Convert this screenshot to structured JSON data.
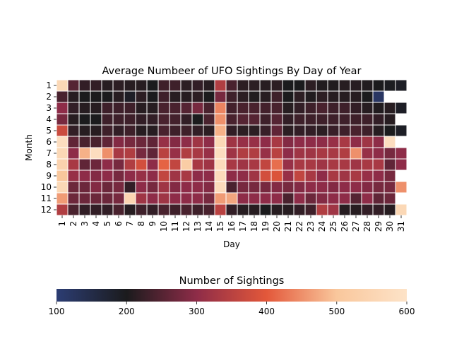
{
  "chart_data": {
    "type": "heatmap",
    "title": "Average Numbeer of UFO Sightings By Day of Year",
    "xlabel": "Day",
    "ylabel": "Month",
    "x_categories": [
      "1",
      "2",
      "3",
      "4",
      "5",
      "6",
      "7",
      "8",
      "9",
      "10",
      "11",
      "12",
      "13",
      "14",
      "15",
      "16",
      "17",
      "18",
      "19",
      "20",
      "21",
      "22",
      "23",
      "24",
      "25",
      "26",
      "27",
      "28",
      "29",
      "30",
      "31"
    ],
    "y_categories": [
      "1",
      "2",
      "3",
      "4",
      "5",
      "6",
      "7",
      "8",
      "9",
      "10",
      "11",
      "12"
    ],
    "values": [
      [
        560,
        250,
        220,
        220,
        210,
        215,
        210,
        210,
        200,
        230,
        230,
        215,
        220,
        210,
        340,
        240,
        215,
        215,
        210,
        215,
        200,
        200,
        215,
        205,
        205,
        210,
        210,
        205,
        200,
        195,
        190
      ],
      [
        240,
        210,
        200,
        200,
        200,
        210,
        190,
        215,
        200,
        230,
        210,
        210,
        215,
        200,
        280,
        230,
        215,
        205,
        210,
        230,
        200,
        215,
        205,
        215,
        210,
        210,
        210,
        200,
        120,
        null,
        null
      ],
      [
        300,
        220,
        210,
        210,
        230,
        230,
        230,
        210,
        210,
        240,
        240,
        250,
        280,
        240,
        440,
        235,
        240,
        240,
        235,
        240,
        210,
        220,
        230,
        240,
        230,
        230,
        220,
        210,
        205,
        210,
        190
      ],
      [
        280,
        210,
        200,
        200,
        230,
        230,
        230,
        220,
        220,
        240,
        235,
        220,
        200,
        240,
        450,
        240,
        250,
        250,
        230,
        250,
        220,
        230,
        230,
        230,
        230,
        230,
        230,
        230,
        220,
        210,
        null
      ],
      [
        370,
        220,
        210,
        210,
        230,
        220,
        230,
        210,
        210,
        240,
        230,
        230,
        220,
        215,
        480,
        220,
        215,
        215,
        225,
        260,
        215,
        220,
        220,
        215,
        225,
        230,
        240,
        230,
        210,
        200,
        190
      ],
      [
        580,
        260,
        240,
        240,
        260,
        290,
        280,
        270,
        260,
        310,
        290,
        300,
        320,
        300,
        560,
        320,
        310,
        310,
        300,
        330,
        290,
        300,
        300,
        300,
        310,
        330,
        300,
        320,
        300,
        580,
        null
      ],
      [
        560,
        300,
        480,
        580,
        450,
        330,
        340,
        280,
        260,
        350,
        310,
        340,
        330,
        310,
        580,
        320,
        340,
        340,
        310,
        350,
        300,
        320,
        320,
        330,
        330,
        340,
        450,
        310,
        300,
        280,
        300
      ],
      [
        540,
        330,
        260,
        270,
        300,
        280,
        340,
        380,
        300,
        410,
        360,
        520,
        330,
        320,
        570,
        330,
        320,
        330,
        360,
        420,
        310,
        330,
        330,
        320,
        330,
        330,
        320,
        330,
        330,
        260,
        300
      ],
      [
        500,
        310,
        300,
        290,
        300,
        280,
        300,
        310,
        300,
        360,
        320,
        330,
        300,
        300,
        570,
        300,
        300,
        320,
        380,
        390,
        310,
        360,
        330,
        300,
        330,
        320,
        330,
        310,
        300,
        280,
        null
      ],
      [
        560,
        270,
        270,
        290,
        270,
        280,
        220,
        300,
        280,
        320,
        290,
        300,
        300,
        290,
        570,
        240,
        280,
        280,
        280,
        290,
        280,
        290,
        300,
        300,
        290,
        300,
        300,
        290,
        280,
        280,
        450
      ],
      [
        460,
        270,
        270,
        270,
        270,
        280,
        550,
        320,
        300,
        320,
        300,
        300,
        300,
        280,
        460,
        470,
        300,
        300,
        300,
        300,
        240,
        300,
        270,
        290,
        300,
        300,
        250,
        300,
        260,
        270,
        null
      ],
      [
        340,
        240,
        220,
        220,
        220,
        240,
        210,
        230,
        220,
        240,
        230,
        240,
        230,
        240,
        350,
        220,
        210,
        210,
        200,
        210,
        210,
        220,
        230,
        340,
        320,
        210,
        210,
        220,
        220,
        210,
        560
      ]
    ],
    "colorbar": {
      "label": "Number of Sightings",
      "min": 100,
      "max": 600,
      "ticks": [
        "100",
        "200",
        "300",
        "400",
        "500",
        "600"
      ]
    },
    "colormap_stops": [
      "#2c3d73",
      "#1b1b1d",
      "#8e2c48",
      "#e3583a",
      "#f9c79c",
      "#fde3c8"
    ],
    "grid": true
  }
}
